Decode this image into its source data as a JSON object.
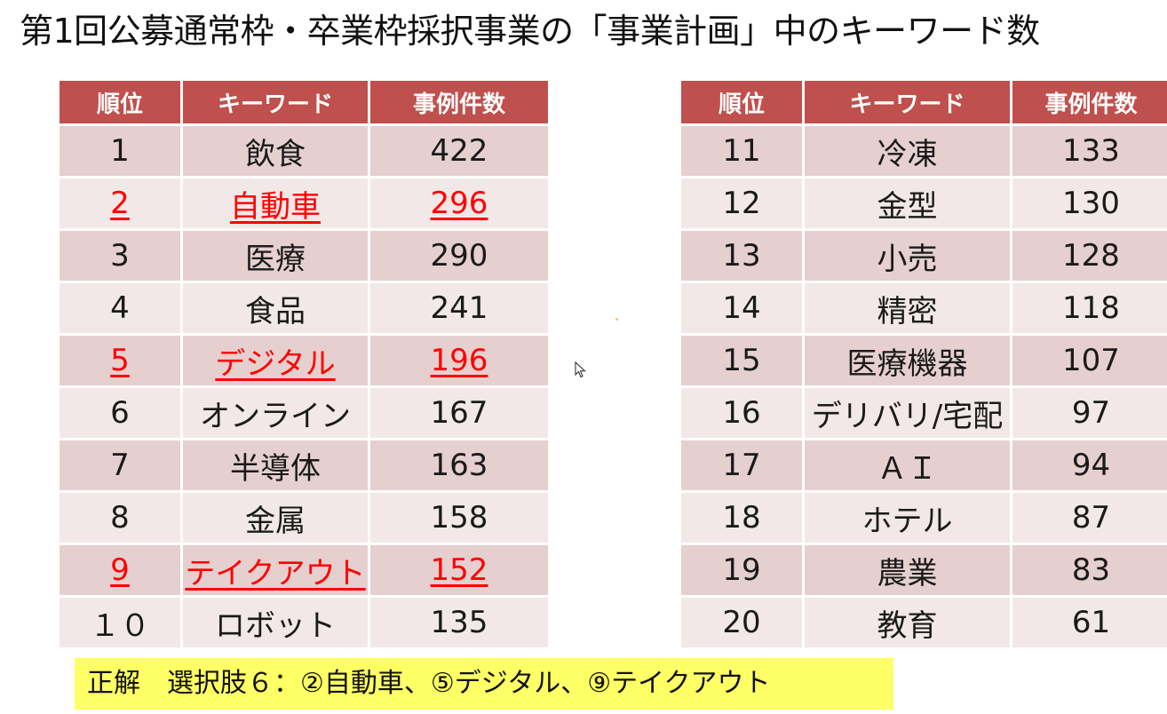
{
  "title": "第1回公募通常枠・卒業枠採択事業の「事業計画」中のキーワード数",
  "table_left": {
    "headers": [
      "順位",
      "キーワード",
      "事例件数"
    ],
    "rows": [
      {
        "rank": "1",
        "keyword": "飲食",
        "count": "422",
        "highlight": false
      },
      {
        "rank": "2",
        "keyword": "自動車",
        "count": "296",
        "highlight": true
      },
      {
        "rank": "3",
        "keyword": "医療",
        "count": "290",
        "highlight": false
      },
      {
        "rank": "4",
        "keyword": "食品",
        "count": "241",
        "highlight": false
      },
      {
        "rank": "5",
        "keyword": "デジタル",
        "count": "196",
        "highlight": true
      },
      {
        "rank": "6",
        "keyword": "オンライン",
        "count": "167",
        "highlight": false
      },
      {
        "rank": "7",
        "keyword": "半導体",
        "count": "163",
        "highlight": false
      },
      {
        "rank": "8",
        "keyword": "金属",
        "count": "158",
        "highlight": false
      },
      {
        "rank": "9",
        "keyword": "テイクアウト",
        "count": "152",
        "highlight": true
      },
      {
        "rank": "１０",
        "keyword": "ロボット",
        "count": "135",
        "highlight": false
      }
    ]
  },
  "table_right": {
    "headers": [
      "順位",
      "キーワード",
      "事例件数"
    ],
    "rows": [
      {
        "rank": "11",
        "keyword": "冷凍",
        "count": "133",
        "highlight": false
      },
      {
        "rank": "12",
        "keyword": "金型",
        "count": "130",
        "highlight": false
      },
      {
        "rank": "13",
        "keyword": "小売",
        "count": "128",
        "highlight": false
      },
      {
        "rank": "14",
        "keyword": "精密",
        "count": "118",
        "highlight": false
      },
      {
        "rank": "15",
        "keyword": "医療機器",
        "count": "107",
        "highlight": false
      },
      {
        "rank": "16",
        "keyword": "デリバリ/宅配",
        "count": "97",
        "highlight": false
      },
      {
        "rank": "17",
        "keyword": "ＡＩ",
        "count": "94",
        "highlight": false
      },
      {
        "rank": "18",
        "keyword": "ホテル",
        "count": "87",
        "highlight": false
      },
      {
        "rank": "19",
        "keyword": "農業",
        "count": "83",
        "highlight": false
      },
      {
        "rank": "20",
        "keyword": "教育",
        "count": "61",
        "highlight": false
      }
    ]
  },
  "answer": "正解　選択肢６：②自動車、⑤デジタル、⑨テイクアウト",
  "colors": {
    "header": "#c0504d",
    "row_odd": "#e6cfcf",
    "row_even": "#f2e8e7",
    "highlight_text": "#ff0000",
    "answer_bg": "#ffff66"
  },
  "icons": [
    "mouse-cursor-icon"
  ]
}
